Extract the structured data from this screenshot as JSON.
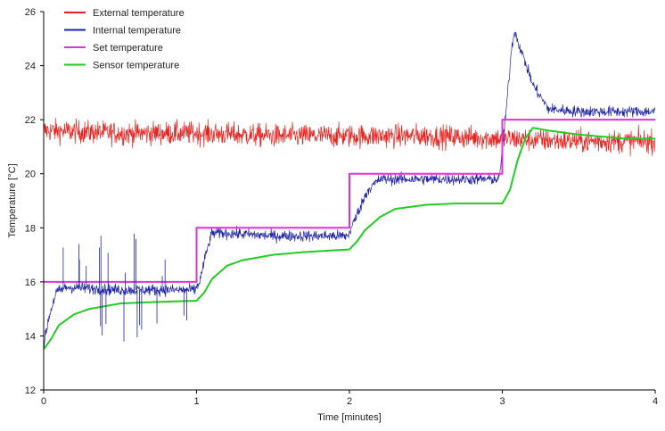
{
  "chart_data": {
    "type": "line",
    "title": "",
    "xlabel": "Time [minutes]",
    "ylabel": "Temperature [°C]",
    "xlim": [
      0,
      4
    ],
    "ylim": [
      12,
      26
    ],
    "xticks": [
      "0",
      "1",
      "2",
      "3",
      "4"
    ],
    "yticks": [
      "12",
      "14",
      "16",
      "18",
      "20",
      "22",
      "24",
      "26"
    ],
    "grid": false,
    "legend_position": "top-left",
    "series": [
      {
        "name": "External temperature",
        "color": "#e8231f",
        "style": "noisy",
        "noise_amplitude": 0.45,
        "x": [
          0,
          0.5,
          1.0,
          1.5,
          2.0,
          2.5,
          3.0,
          3.5,
          4.0
        ],
        "y": [
          21.6,
          21.5,
          21.5,
          21.4,
          21.4,
          21.4,
          21.3,
          21.2,
          21.2
        ]
      },
      {
        "name": "Internal temperature",
        "color": "#1f22a8",
        "style": "noisy",
        "noise_amplitude": 0.22,
        "x": [
          0,
          0.03,
          0.08,
          0.15,
          0.5,
          0.99,
          1.02,
          1.06,
          1.1,
          1.2,
          1.5,
          1.99,
          2.05,
          2.12,
          2.2,
          2.5,
          2.98,
          3.02,
          3.06,
          3.08,
          3.12,
          3.2,
          3.3,
          3.5,
          4.0
        ],
        "y": [
          13.6,
          14.6,
          15.6,
          15.8,
          15.7,
          15.7,
          16.0,
          17.0,
          17.8,
          17.8,
          17.7,
          17.7,
          18.5,
          19.4,
          19.8,
          19.8,
          19.8,
          22.0,
          24.6,
          25.3,
          24.6,
          23.3,
          22.4,
          22.3,
          22.3
        ]
      },
      {
        "name": "Set temperature",
        "color": "#e030d8",
        "style": "step",
        "x": [
          0,
          1,
          1,
          2,
          2,
          3,
          3,
          4
        ],
        "y": [
          16,
          16,
          18,
          18,
          20,
          20,
          22,
          22
        ]
      },
      {
        "name": "Sensor temperature",
        "color": "#22cc22",
        "style": "smooth",
        "x": [
          0,
          0.05,
          0.1,
          0.2,
          0.3,
          0.5,
          0.7,
          1.0,
          1.05,
          1.1,
          1.2,
          1.3,
          1.5,
          1.7,
          2.0,
          2.05,
          2.1,
          2.2,
          2.3,
          2.5,
          2.7,
          3.0,
          3.05,
          3.1,
          3.15,
          3.2,
          3.3,
          3.5,
          3.8,
          4.0
        ],
        "y": [
          13.5,
          13.9,
          14.4,
          14.8,
          15.0,
          15.2,
          15.25,
          15.3,
          15.6,
          16.1,
          16.6,
          16.8,
          17.0,
          17.1,
          17.2,
          17.5,
          17.9,
          18.4,
          18.7,
          18.85,
          18.9,
          18.9,
          19.4,
          20.5,
          21.3,
          21.7,
          21.6,
          21.45,
          21.3,
          21.3
        ]
      }
    ]
  }
}
